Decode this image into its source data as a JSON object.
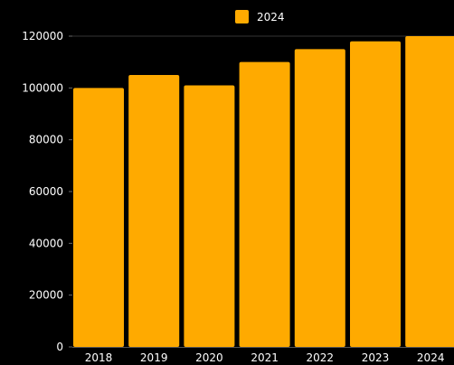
{
  "chart_data": {
    "type": "bar",
    "title": "",
    "xlabel": "",
    "ylabel": "",
    "categories": [
      "2018",
      "2019",
      "2020",
      "2021",
      "2022",
      "2023",
      "2024"
    ],
    "series": [
      {
        "name": "2024",
        "values": [
          100000,
          105000,
          101000,
          110000,
          115000,
          118000,
          120000
        ],
        "color": "#FFAA00"
      }
    ],
    "ylim": [
      0,
      120000
    ],
    "yticks": [
      "0",
      "20000",
      "40000",
      "60000",
      "80000",
      "100000",
      "120000"
    ],
    "grid": false,
    "legend_position": "top-center",
    "background": "#000000",
    "text_color": "#ffffff"
  }
}
